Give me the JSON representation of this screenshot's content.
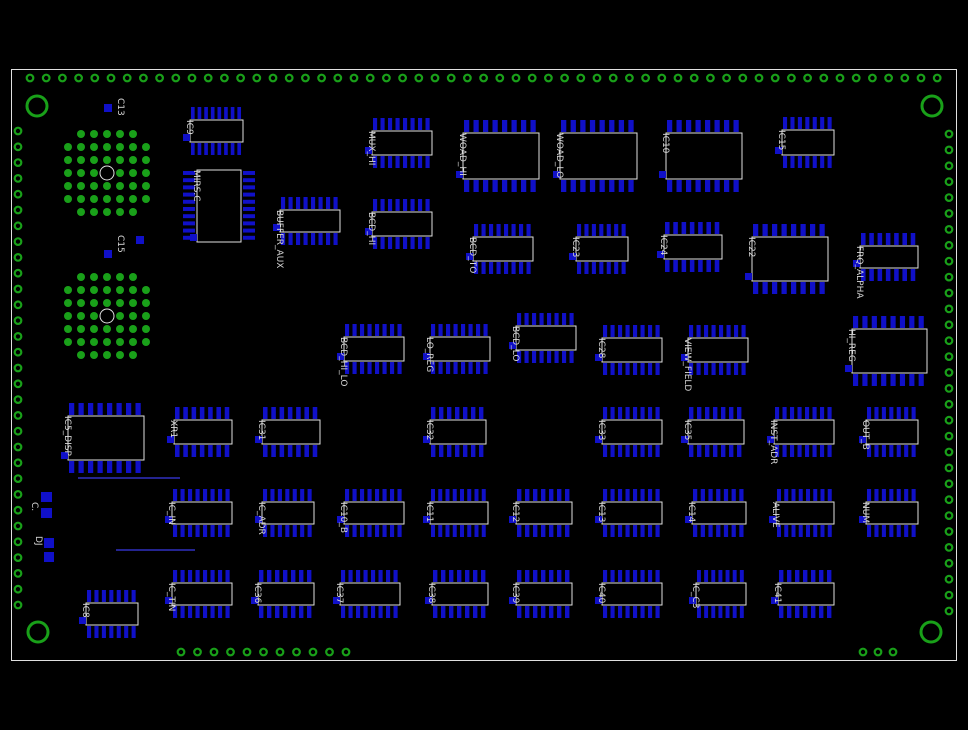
{
  "board": {
    "components": [
      "IC9",
      "MUX_HI",
      "WOAD_HI",
      "WOAD_LO",
      "IC10",
      "IC15",
      "MIRS.C",
      "BUFFER_AUX",
      "BCD_HI",
      "BCD_TO",
      "IC23",
      "IC24",
      "IC22",
      "FRQ_ALPHA",
      "BCD_HI_LO",
      "LO_REG",
      "BCD_LO",
      "IC28",
      "VIEW_FIELD",
      "HI_REG",
      "IC5_DISP",
      "XR1",
      "IC31",
      "IC32",
      "IC33",
      "IC35",
      "INST_ADR",
      "OUT_B",
      "IC_IN",
      "IC_ADR",
      "IC10_B",
      "IC11",
      "IC12",
      "IC13",
      "IC14",
      "ALIVE",
      "NUM",
      "IC_TIN",
      "IC36",
      "IC37",
      "IC38",
      "IC39",
      "IC40",
      "IC_C3",
      "IC41",
      "IC8"
    ],
    "labels": {
      "c13": "C13",
      "c15": "C15",
      "c": "C.",
      "dj": "DJ"
    }
  }
}
